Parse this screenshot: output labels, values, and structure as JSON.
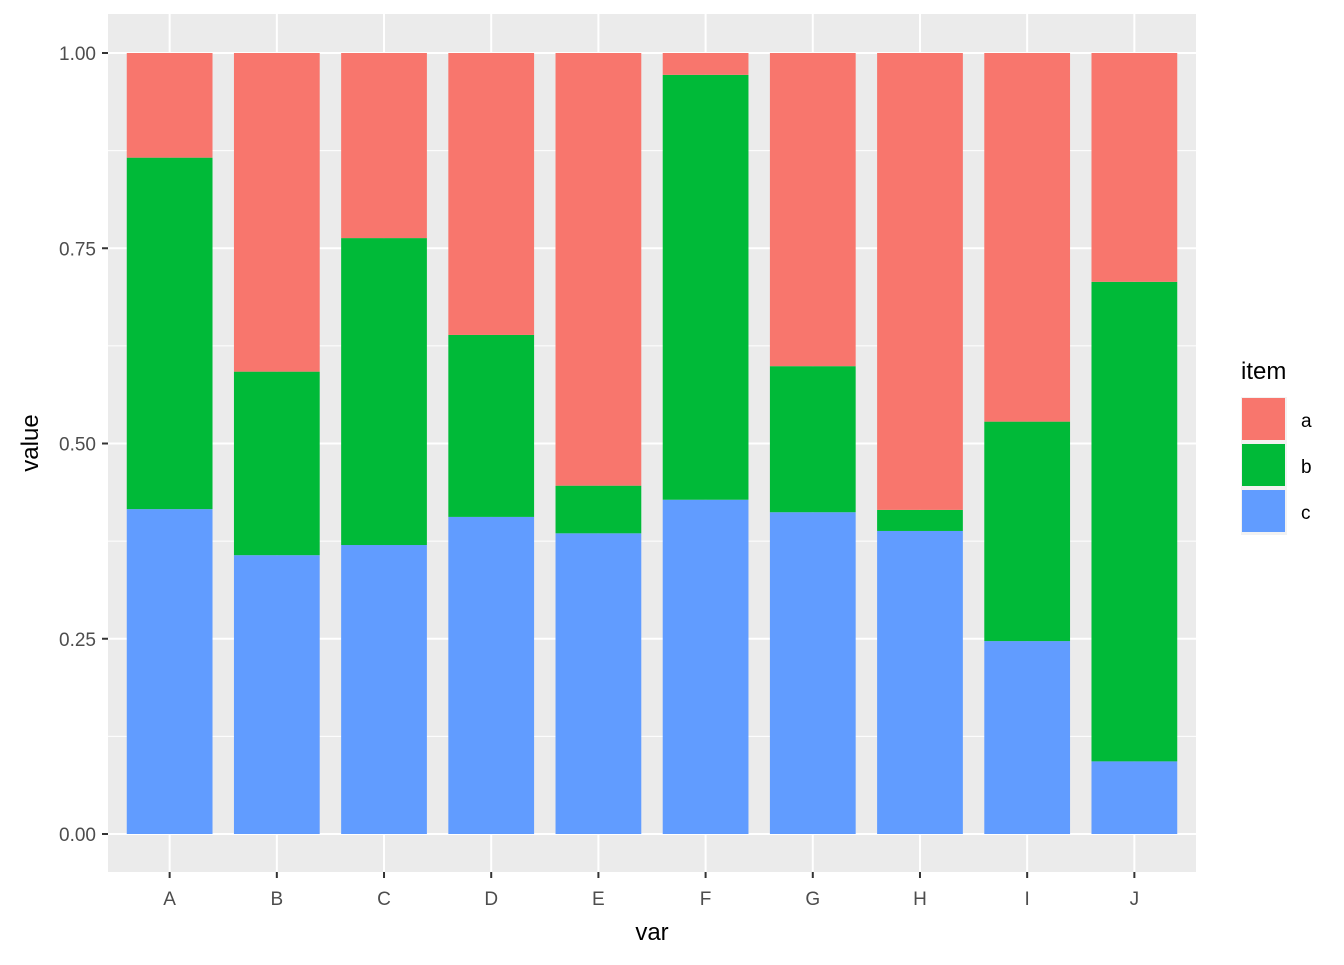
{
  "chart_data": {
    "type": "bar",
    "stacked": true,
    "title": "",
    "xlabel": "var",
    "ylabel": "value",
    "ylim": [
      0,
      1
    ],
    "yticks": [
      "0.00",
      "0.25",
      "0.50",
      "0.75",
      "1.00"
    ],
    "categories": [
      "A",
      "B",
      "C",
      "D",
      "E",
      "F",
      "G",
      "H",
      "I",
      "J"
    ],
    "series": [
      {
        "name": "a",
        "color": "#F8766D",
        "values": [
          0.134,
          0.408,
          0.237,
          0.361,
          0.554,
          0.028,
          0.401,
          0.585,
          0.472,
          0.293
        ]
      },
      {
        "name": "b",
        "color": "#00BA38",
        "values": [
          0.45,
          0.235,
          0.393,
          0.233,
          0.061,
          0.544,
          0.187,
          0.027,
          0.281,
          0.614
        ]
      },
      {
        "name": "c",
        "color": "#619CFF",
        "values": [
          0.416,
          0.357,
          0.37,
          0.406,
          0.385,
          0.428,
          0.412,
          0.388,
          0.247,
          0.093
        ]
      }
    ],
    "legend": {
      "title": "item",
      "position": "right"
    },
    "grid": true
  }
}
